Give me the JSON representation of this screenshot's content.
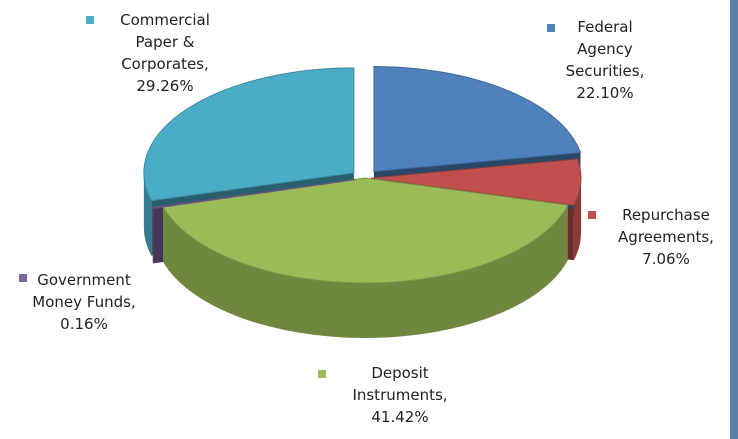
{
  "chart_data": {
    "type": "pie",
    "title": "",
    "exploded": true,
    "three_d": true,
    "slices": [
      {
        "name": "Federal Agency Securities",
        "value": 22.1,
        "label_lines": [
          "Federal",
          "Agency",
          "Securities,",
          "22.10%"
        ],
        "color": "#4f81bd"
      },
      {
        "name": "Repurchase Agreements",
        "value": 7.06,
        "label_lines": [
          "Repurchase",
          "Agreements,",
          "7.06%"
        ],
        "color": "#c0504d"
      },
      {
        "name": "Deposit Instruments",
        "value": 41.42,
        "label_lines": [
          "Deposit",
          "Instruments,",
          "41.42%"
        ],
        "color": "#9bbb59"
      },
      {
        "name": "Government Money Funds",
        "value": 0.16,
        "label_lines": [
          "Government",
          "Money Funds,",
          "0.16%"
        ],
        "color": "#8064a2"
      },
      {
        "name": "Commercial Paper & Corporates",
        "value": 29.26,
        "label_lines": [
          "Commercial",
          "Paper &",
          "Corporates,",
          "29.26%"
        ],
        "color": "#4bacc6"
      }
    ]
  }
}
